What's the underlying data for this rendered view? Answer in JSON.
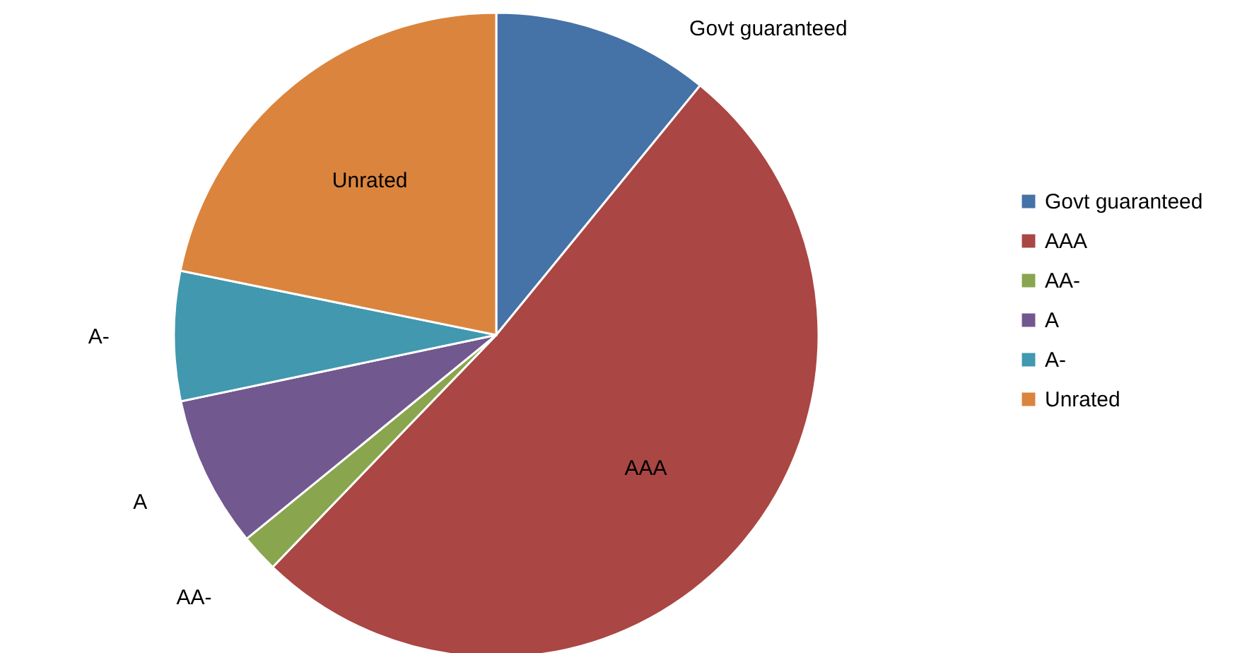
{
  "chart_data": {
    "type": "pie",
    "categories": [
      "Govt guaranteed",
      "AAA",
      "AA-",
      "A",
      "A-",
      "Unrated"
    ],
    "values": [
      10.9,
      51.3,
      1.9,
      7.6,
      6.5,
      21.8
    ],
    "colors": [
      "#4572a7",
      "#aa4643",
      "#89a54e",
      "#71588f",
      "#4198af",
      "#db843d"
    ],
    "legend": "right"
  }
}
